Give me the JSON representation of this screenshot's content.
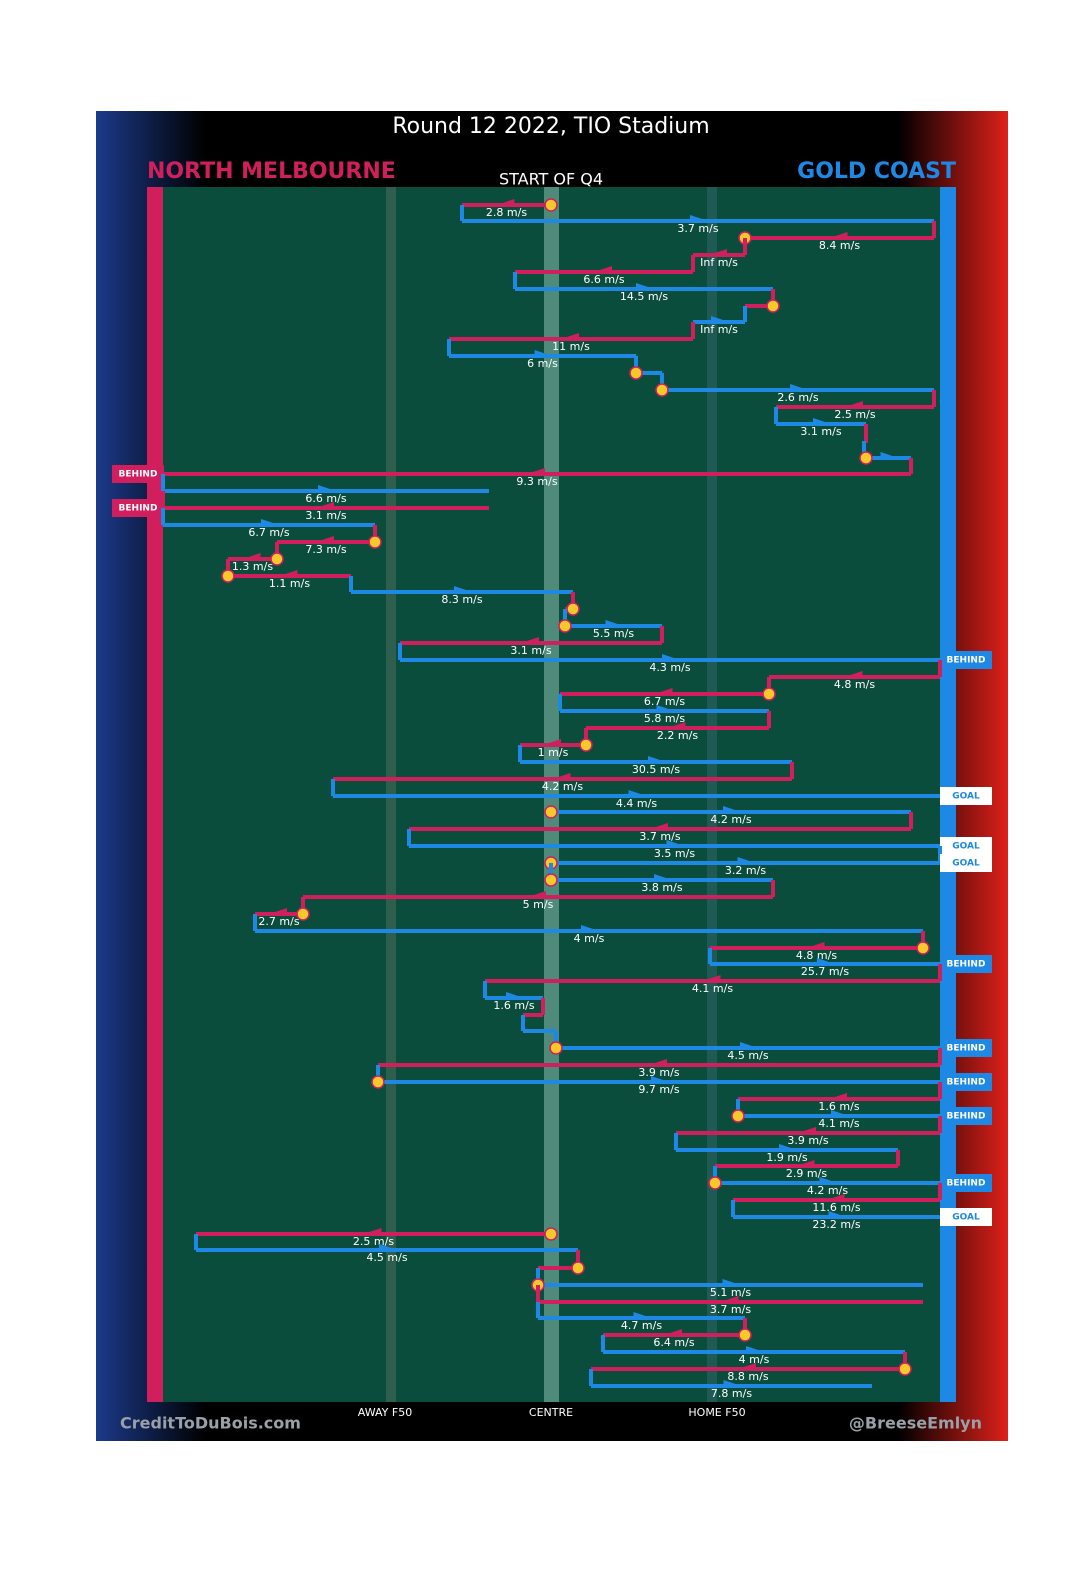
{
  "header": {
    "title": "Round 12 2022, TIO Stadium",
    "home_team": "NORTH MELBOURNE",
    "away_team": "GOLD COAST",
    "subtitle": "START OF Q4"
  },
  "field_labels": [
    "AWAY F50",
    "CENTRE",
    "HOME F50"
  ],
  "footer": {
    "left": "CreditToDuBois.com",
    "right": "@BreeseEmlyn"
  },
  "speeds": [
    "2.8 m/s",
    "3.7 m/s",
    "8.4 m/s",
    "Inf m/s",
    "6.6 m/s",
    "14.5 m/s",
    "Inf m/s",
    "11 m/s",
    "6 m/s",
    "2.6 m/s",
    "2.5 m/s",
    "3.1 m/s",
    "9.3 m/s",
    "6.6 m/s",
    "3.1 m/s",
    "6.7 m/s",
    "7.3 m/s",
    "1.3 m/s",
    "1.1 m/s",
    "8.3 m/s",
    "5.5 m/s",
    "3.1 m/s",
    "4.3 m/s",
    "4.8 m/s",
    "6.7 m/s",
    "5.8 m/s",
    "2.2 m/s",
    "1 m/s",
    "30.5 m/s",
    "4.2 m/s",
    "4.4 m/s",
    "4.2 m/s",
    "3.7 m/s",
    "3.5 m/s",
    "3.2 m/s",
    "3.8 m/s",
    "5 m/s",
    "2.7 m/s",
    "4 m/s",
    "4.8 m/s",
    "25.7 m/s",
    "4.1 m/s",
    "1.6 m/s",
    "4.5 m/s",
    "3.9 m/s",
    "9.7 m/s",
    "1.6 m/s",
    "4.1 m/s",
    "3.9 m/s",
    "1.9 m/s",
    "2.9 m/s",
    "4.2 m/s",
    "11.6 m/s",
    "23.2 m/s",
    "2.5 m/s",
    "4.5 m/s",
    "5.1 m/s",
    "3.7 m/s",
    "4.7 m/s",
    "6.4 m/s",
    "4 m/s",
    "8.8 m/s",
    "7.8 m/s"
  ],
  "outcomes": [
    "BEHIND",
    "BEHIND",
    "BEHIND",
    "GOAL",
    "GOAL",
    "GOAL",
    "BEHIND",
    "BEHIND",
    "BEHIND",
    "BEHIND",
    "BEHIND",
    "GOAL"
  ]
}
